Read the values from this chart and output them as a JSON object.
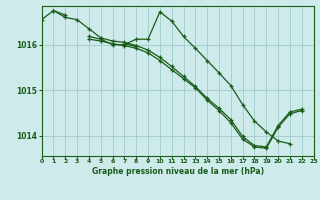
{
  "title": "Graphe pression niveau de la mer (hPa)",
  "bg_color": "#ceeaea",
  "grid_color": "#a0cccc",
  "line_color": "#1a5c1a",
  "xlim": [
    0,
    23
  ],
  "ylim": [
    1013.55,
    1016.85
  ],
  "yticks": [
    1014,
    1015,
    1016
  ],
  "xticks": [
    0,
    1,
    2,
    3,
    4,
    5,
    6,
    7,
    8,
    9,
    10,
    11,
    12,
    13,
    14,
    15,
    16,
    17,
    18,
    19,
    20,
    21,
    22,
    23
  ],
  "series": [
    [
      1016.55,
      1016.75,
      1016.6,
      1016.55,
      1016.35,
      1016.15,
      1016.08,
      1016.05,
      1015.98,
      1015.88,
      1015.72,
      1015.52,
      1015.3,
      1015.08,
      1014.82,
      1014.6,
      1014.35,
      1013.98,
      1013.78,
      1013.75,
      1014.22,
      1014.52,
      1014.58,
      null
    ],
    [
      null,
      1016.75,
      1016.65,
      null,
      1016.18,
      1016.12,
      1016.0,
      1016.0,
      1016.12,
      1016.12,
      1016.72,
      1016.52,
      1016.18,
      1015.92,
      1015.65,
      1015.38,
      1015.1,
      1014.68,
      1014.32,
      1014.08,
      1013.88,
      1013.82,
      null,
      null
    ],
    [
      null,
      null,
      null,
      null,
      1016.12,
      1016.08,
      1016.02,
      1015.98,
      1015.92,
      1015.82,
      1015.65,
      1015.45,
      1015.25,
      1015.05,
      1014.78,
      1014.55,
      1014.28,
      1013.92,
      1013.75,
      1013.72,
      1014.18,
      1014.48,
      1014.55,
      null
    ],
    [
      null,
      null,
      null,
      null,
      null,
      null,
      null,
      1016.02,
      1015.96,
      null,
      null,
      null,
      null,
      null,
      null,
      null,
      null,
      null,
      null,
      null,
      null,
      null,
      null,
      null
    ]
  ]
}
